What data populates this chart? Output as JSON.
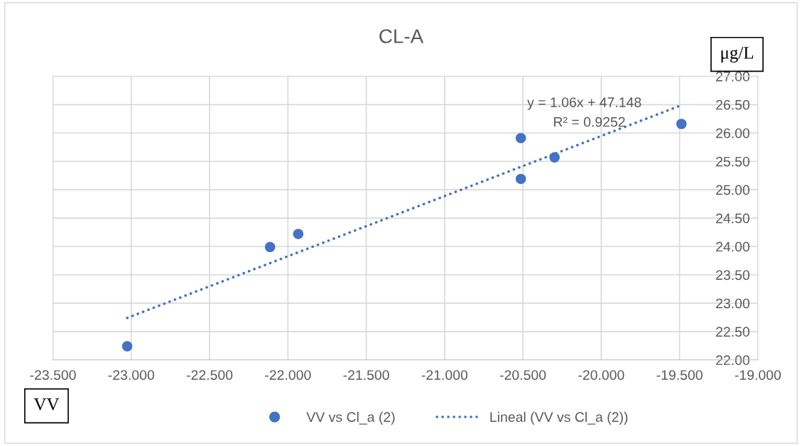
{
  "chart_data": {
    "type": "scatter",
    "title": "CL-A",
    "xlabel": "VV",
    "ylabel": "μg/L",
    "xlim": [
      -23.5,
      -19.0
    ],
    "xticks": [
      {
        "value": -23.5,
        "label": "-23.500"
      },
      {
        "value": -23.0,
        "label": "-23.000"
      },
      {
        "value": -22.5,
        "label": "-22.500"
      },
      {
        "value": -22.0,
        "label": "-22.000"
      },
      {
        "value": -21.5,
        "label": "-21.500"
      },
      {
        "value": -21.0,
        "label": "-21.000"
      },
      {
        "value": -20.5,
        "label": "-20.500"
      },
      {
        "value": -20.0,
        "label": "-20.000"
      },
      {
        "value": -19.5,
        "label": "-19.500"
      },
      {
        "value": -19.0,
        "label": "-19.000"
      }
    ],
    "ylim": [
      22.0,
      27.0
    ],
    "yticks": [
      {
        "value": 22.0,
        "label": "22.00"
      },
      {
        "value": 22.5,
        "label": "22.50"
      },
      {
        "value": 23.0,
        "label": "23.00"
      },
      {
        "value": 23.5,
        "label": "23.50"
      },
      {
        "value": 24.0,
        "label": "24.00"
      },
      {
        "value": 24.5,
        "label": "24.50"
      },
      {
        "value": 25.0,
        "label": "25.00"
      },
      {
        "value": 25.5,
        "label": "25.50"
      },
      {
        "value": 26.0,
        "label": "26.00"
      },
      {
        "value": 26.5,
        "label": "26.50"
      },
      {
        "value": 27.0,
        "label": "27.00"
      }
    ],
    "grid": true,
    "legend": "bottom",
    "annotations": [
      "y = 1.06x + 47.148",
      "R² = 0.9252"
    ],
    "series": [
      {
        "name": "VV vs Cl_a (2)",
        "marker": "circle",
        "color": "#4472c4",
        "x": [
          -23.026,
          -22.114,
          -21.934,
          -20.513,
          -20.513,
          -20.298,
          -19.488
        ],
        "values": [
          22.24,
          23.99,
          24.22,
          25.91,
          25.19,
          25.57,
          26.16
        ]
      },
      {
        "name": "Lineal (VV vs Cl_a (2))",
        "type": "line",
        "line_style": "dotted",
        "marker": "none",
        "color": "#4472c4",
        "x": [
          -23.026,
          -19.488
        ],
        "values": [
          22.74,
          26.49
        ]
      }
    ]
  }
}
